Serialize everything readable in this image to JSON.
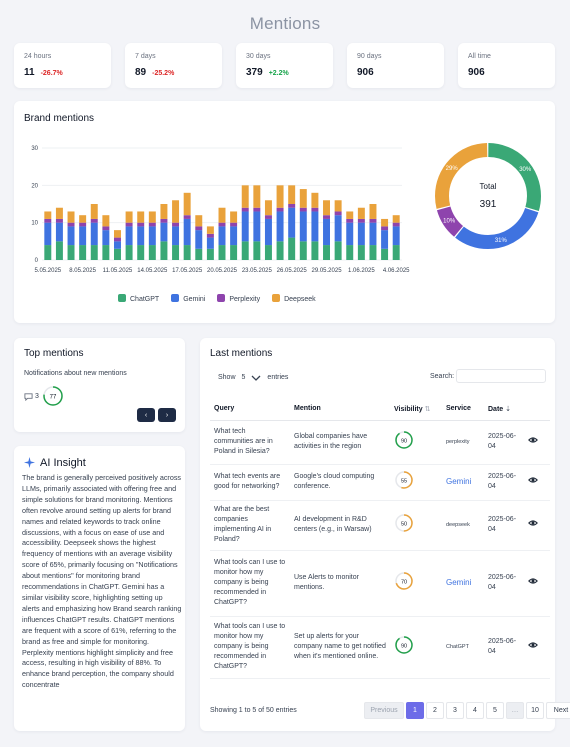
{
  "page_title": "Mentions",
  "stats": [
    {
      "label": "24 hours",
      "value": "11",
      "change": "-26.7%",
      "dir": "neg"
    },
    {
      "label": "7 days",
      "value": "89",
      "change": "-25.2%",
      "dir": "neg"
    },
    {
      "label": "30 days",
      "value": "379",
      "change": "+2.2%",
      "dir": "pos"
    },
    {
      "label": "90 days",
      "value": "906",
      "change": "",
      "dir": ""
    },
    {
      "label": "All time",
      "value": "906",
      "change": "",
      "dir": ""
    }
  ],
  "brand_mentions": {
    "title": "Brand mentions",
    "total_label": "Total",
    "total_value": "391",
    "legend": [
      "ChatGPT",
      "Gemini",
      "Perplexity",
      "Deepseek"
    ]
  },
  "colors": {
    "chatgpt": "#3aa876",
    "gemini": "#3f73e0",
    "perplexity": "#8e44ad",
    "deepseek": "#e9a23b",
    "accent": "#6d6ce8"
  },
  "chart_data": {
    "type": "bar",
    "stacked": true,
    "ylim": [
      0,
      30
    ],
    "yticks": [
      "0",
      "10",
      "20",
      "30"
    ],
    "xtick_labels": [
      "5.05.2025",
      "8.05.2025",
      "11.05.2025",
      "14.05.2025",
      "17.05.2025",
      "20.05.2025",
      "23.05.2025",
      "26.05.2025",
      "29.05.2025",
      "1.06.2025",
      "4.06.2025"
    ],
    "n_categories": 31,
    "series": [
      {
        "name": "ChatGPT",
        "values": [
          4,
          5,
          4,
          4,
          4,
          4,
          3,
          4,
          4,
          4,
          5,
          4,
          4,
          3,
          3,
          4,
          4,
          5,
          5,
          4,
          5,
          6,
          5,
          5,
          4,
          5,
          4,
          4,
          4,
          3,
          4
        ]
      },
      {
        "name": "Gemini",
        "values": [
          6,
          5,
          5,
          5,
          6,
          4,
          2,
          5,
          5,
          5,
          5,
          5,
          7,
          5,
          3,
          5,
          5,
          8,
          8,
          7,
          8,
          8,
          8,
          8,
          7,
          7,
          6,
          6,
          6,
          5,
          5
        ]
      },
      {
        "name": "Perplexity",
        "values": [
          1,
          1,
          1,
          1,
          1,
          1,
          1,
          1,
          1,
          1,
          1,
          1,
          1,
          1,
          1,
          1,
          1,
          1,
          1,
          1,
          1,
          1,
          1,
          1,
          1,
          1,
          1,
          1,
          1,
          1,
          1
        ]
      },
      {
        "name": "Deepseek",
        "values": [
          2,
          3,
          3,
          2,
          4,
          3,
          2,
          3,
          3,
          3,
          4,
          6,
          6,
          3,
          2,
          4,
          3,
          6,
          6,
          4,
          6,
          5,
          5,
          4,
          4,
          3,
          2,
          3,
          4,
          2,
          2
        ]
      }
    ],
    "donut": [
      {
        "name": "ChatGPT",
        "pct": 30,
        "label": "30%"
      },
      {
        "name": "Gemini",
        "pct": 31,
        "label": "31%"
      },
      {
        "name": "Perplexity",
        "pct": 10,
        "label": "10%"
      },
      {
        "name": "Deepseek",
        "pct": 29,
        "label": "29%"
      }
    ]
  },
  "top_mentions": {
    "title": "Top mentions",
    "item_text": "Notifications about new mentions",
    "comment_count": "3",
    "score": "77",
    "prev_label": "‹",
    "next_label": "›"
  },
  "ai_insight": {
    "title": "AI Insight",
    "text": "The brand is generally perceived positively across LLMs, primarily associated with offering free and simple solutions for brand monitoring. Mentions often revolve around setting up alerts for brand names and related keywords to track online discussions, with a focus on ease of use and accessibility. Deepseek shows the highest frequency of mentions with an average visibility score of 65%, primarily focusing on \"Notifications about mentions\" for monitoring brand recommendations in ChatGPT. Gemini has a similar visibility score, highlighting setting up alerts and emphasizing how Brand search ranking influences ChatGPT results. ChatGPT mentions are frequent with a score of 61%, referring to the brand as free and simple for monitoring. Perplexity mentions highlight simplicity and free access, resulting in high visibility of 88%. To enhance brand perception, the company should concentrate"
  },
  "last_mentions": {
    "title": "Last mentions",
    "show_label": "Show",
    "show_value": "5",
    "entries_label": "entries",
    "search_label": "Search:",
    "search_value": "",
    "columns": [
      "Query",
      "Mention",
      "Visibility",
      "Service",
      "Date"
    ],
    "rows": [
      {
        "query": "What tech communities are in Poland in Silesia?",
        "mention": "Global companies have activities in the region",
        "visibility": "90",
        "vis_pct": 90,
        "vis_color": "#22a04b",
        "service": "perplexity",
        "date": "2025-06-04"
      },
      {
        "query": "What tech events are good for networking?",
        "mention": "Google's cloud computing conference.",
        "visibility": "55",
        "vis_pct": 55,
        "vis_color": "#e9a23b",
        "service": "Gemini",
        "date": "2025-06-04"
      },
      {
        "query": "What are the best companies implementing AI in Poland?",
        "mention": "AI development in R&D centers (e.g., in Warsaw)",
        "visibility": "50",
        "vis_pct": 50,
        "vis_color": "#e9a23b",
        "service": "deepseek",
        "date": "2025-06-04"
      },
      {
        "query": "What tools can I use to monitor how my company is being recommended in ChatGPT?",
        "mention": "Use Alerts to monitor mentions.",
        "visibility": "70",
        "vis_pct": 70,
        "vis_color": "#e9a23b",
        "service": "Gemini",
        "date": "2025-06-04"
      },
      {
        "query": "What tools can I use to monitor how my company is being recommended in ChatGPT?",
        "mention": "Set up alerts for your company name to get notified when it's mentioned online.",
        "visibility": "90",
        "vis_pct": 90,
        "vis_color": "#22a04b",
        "service": "ChatGPT",
        "date": "2025-06-04"
      }
    ],
    "showing": "Showing 1 to 5 of 50 entries",
    "pager": [
      "Previous",
      "1",
      "2",
      "3",
      "4",
      "5",
      "…",
      "10",
      "Next"
    ]
  }
}
